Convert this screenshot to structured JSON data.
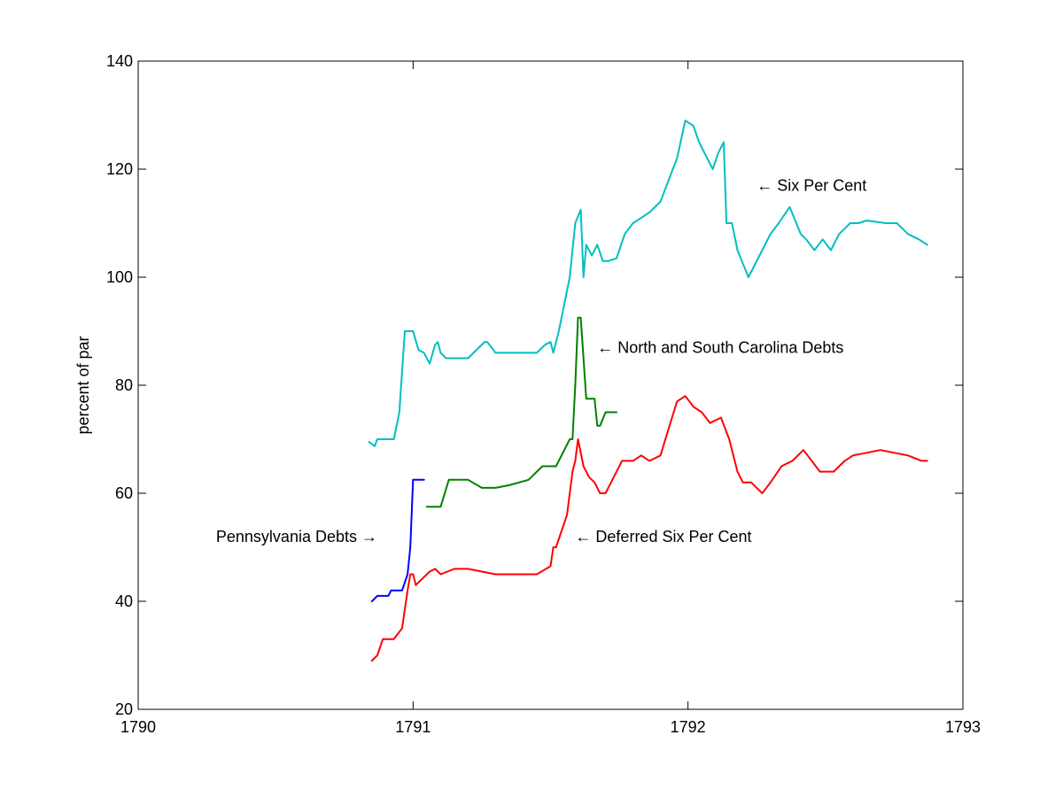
{
  "chart_data": {
    "type": "line",
    "title": "",
    "xlabel": "",
    "ylabel": "percent of par",
    "xlim": [
      1790,
      1793
    ],
    "ylim": [
      20,
      140
    ],
    "xticks": [
      1790,
      1791,
      1792,
      1793
    ],
    "yticks": [
      20,
      40,
      60,
      80,
      100,
      120,
      140
    ],
    "grid": false,
    "legend": "none",
    "series": [
      {
        "name": "Six Per Cent",
        "color": "#00bfbf",
        "x": [
          1790.84,
          1790.86,
          1790.87,
          1790.89,
          1790.93,
          1790.95,
          1790.97,
          1791.0,
          1791.02,
          1791.04,
          1791.06,
          1791.08,
          1791.09,
          1791.1,
          1791.12,
          1791.14,
          1791.16,
          1791.18,
          1791.2,
          1791.26,
          1791.27,
          1791.3,
          1791.35,
          1791.45,
          1791.48,
          1791.5,
          1791.51,
          1791.53,
          1791.55,
          1791.57,
          1791.59,
          1791.61,
          1791.62,
          1791.63,
          1791.65,
          1791.67,
          1791.69,
          1791.71,
          1791.74,
          1791.77,
          1791.8,
          1791.83,
          1791.86,
          1791.9,
          1791.93,
          1791.96,
          1791.99,
          1792.02,
          1792.04,
          1792.06,
          1792.09,
          1792.11,
          1792.13,
          1792.14,
          1792.16,
          1792.18,
          1792.22,
          1792.27,
          1792.3,
          1792.33,
          1792.37,
          1792.41,
          1792.43,
          1792.46,
          1792.49,
          1792.52,
          1792.55,
          1792.59,
          1792.62,
          1792.65,
          1792.72,
          1792.76,
          1792.8,
          1792.84,
          1792.87
        ],
        "values": [
          69.5,
          68.7,
          70,
          70,
          70,
          75,
          90,
          90,
          86.5,
          86,
          84,
          87.5,
          88,
          86,
          85,
          85,
          85,
          85,
          85,
          88,
          88,
          86,
          86,
          86,
          87.5,
          88,
          86,
          90,
          95,
          100,
          110,
          112.5,
          100,
          106,
          104,
          106,
          103,
          103,
          103.5,
          108,
          110,
          111,
          112,
          114,
          118,
          122,
          129,
          128,
          125,
          123,
          120,
          123,
          125,
          110,
          110,
          105,
          100,
          105,
          108,
          110,
          113,
          108,
          107,
          105,
          107,
          105,
          108,
          110,
          110,
          110.5,
          110,
          110,
          108,
          107,
          106
        ]
      },
      {
        "name": "North and South Carolina Debts",
        "color": "#008000",
        "x": [
          1791.05,
          1791.1,
          1791.13,
          1791.2,
          1791.25,
          1791.3,
          1791.35,
          1791.42,
          1791.47,
          1791.52,
          1791.57,
          1791.58,
          1791.59,
          1791.6,
          1791.61,
          1791.62,
          1791.63,
          1791.64,
          1791.66,
          1791.67,
          1791.68,
          1791.7,
          1791.74
        ],
        "values": [
          57.5,
          57.5,
          62.5,
          62.5,
          61,
          61,
          61.5,
          62.5,
          65,
          65,
          70,
          70,
          80,
          92.5,
          92.5,
          85,
          77.5,
          77.5,
          77.5,
          72.5,
          72.5,
          75,
          75
        ]
      },
      {
        "name": "Deferred Six Per Cent",
        "color": "#ff0000",
        "x": [
          1790.85,
          1790.87,
          1790.89,
          1790.93,
          1790.96,
          1790.98,
          1790.99,
          1791.0,
          1791.01,
          1791.03,
          1791.06,
          1791.08,
          1791.1,
          1791.15,
          1791.2,
          1791.3,
          1791.4,
          1791.45,
          1791.5,
          1791.51,
          1791.52,
          1791.54,
          1791.56,
          1791.58,
          1791.59,
          1791.6,
          1791.62,
          1791.64,
          1791.66,
          1791.68,
          1791.7,
          1791.73,
          1791.76,
          1791.8,
          1791.83,
          1791.86,
          1791.9,
          1791.93,
          1791.96,
          1791.99,
          1792.02,
          1792.05,
          1792.08,
          1792.12,
          1792.15,
          1792.18,
          1792.2,
          1792.23,
          1792.27,
          1792.3,
          1792.34,
          1792.38,
          1792.42,
          1792.45,
          1792.48,
          1792.53,
          1792.57,
          1792.6,
          1792.65,
          1792.7,
          1792.75,
          1792.8,
          1792.85,
          1792.87
        ],
        "values": [
          29,
          30,
          33,
          33,
          35,
          42,
          45,
          45,
          43,
          44,
          45.5,
          46,
          45,
          46,
          46,
          45,
          45,
          45,
          46.5,
          50,
          50,
          53,
          56,
          64,
          66,
          70,
          65,
          63,
          62,
          60,
          60,
          63,
          66,
          66,
          67,
          66,
          67,
          72,
          77,
          78,
          76,
          75,
          73,
          74,
          70,
          64,
          62,
          62,
          60,
          62,
          65,
          66,
          68,
          66,
          64,
          64,
          66,
          67,
          67.5,
          68,
          67.5,
          67,
          66,
          66
        ]
      },
      {
        "name": "Pennsylvania Debts",
        "color": "#0000ff",
        "x": [
          1790.85,
          1790.87,
          1790.91,
          1790.92,
          1790.94,
          1790.96,
          1790.98,
          1790.99,
          1791.0,
          1791.04
        ],
        "values": [
          40,
          41,
          41,
          42,
          42,
          42,
          45,
          50,
          62.5,
          62.5
        ]
      }
    ],
    "annotations": [
      {
        "text": "← Six Per Cent",
        "x": 1792.25,
        "y": 117
      },
      {
        "text": "← North and South Carolina Debts",
        "x": 1791.67,
        "y": 87
      },
      {
        "text": "← Deferred Six Per Cent",
        "x": 1791.59,
        "y": 52
      },
      {
        "text": "Pennsylvania Debts →",
        "x": 1790.87,
        "y": 52
      }
    ]
  }
}
